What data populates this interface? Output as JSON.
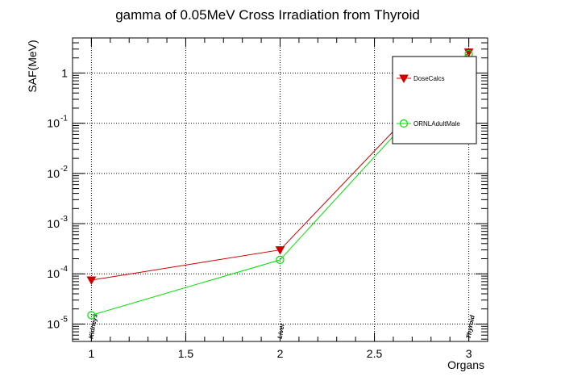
{
  "chart_data": {
    "type": "line",
    "title": "gamma of 0.05MeV Cross Irradiation from Thyroid",
    "xlabel": "Organs",
    "ylabel": "SAF(MeV)",
    "xlim": [
      0.9,
      3.1
    ],
    "ylim": [
      4.5e-06,
      5
    ],
    "yscale": "log",
    "grid": true,
    "legend_position": "top-right",
    "x_ticks": [
      "1",
      "1.5",
      "2",
      "2.5",
      "3"
    ],
    "y_ticks": [
      {
        "base": "10",
        "exp": "-5",
        "value": 1e-05
      },
      {
        "base": "10",
        "exp": "-4",
        "value": 0.0001
      },
      {
        "base": "10",
        "exp": "-3",
        "value": 0.001
      },
      {
        "base": "10",
        "exp": "-2",
        "value": 0.01
      },
      {
        "base": "10",
        "exp": "-1",
        "value": 0.1
      },
      {
        "base": "1",
        "exp": "",
        "value": 1
      }
    ],
    "category_labels": [
      {
        "x": 1,
        "label": "Kidneys"
      },
      {
        "x": 2,
        "label": "Liver"
      },
      {
        "x": 3,
        "label": "Thyroid"
      }
    ],
    "series": [
      {
        "name": "DoseCalcs",
        "color": "#cc0000",
        "marker": "triangle-down",
        "x": [
          1,
          2,
          3
        ],
        "y": [
          7.5e-05,
          0.0003,
          2.6
        ]
      },
      {
        "name": "ORNLAdultMale",
        "color": "#00e000",
        "marker": "open-circle",
        "x": [
          1,
          2,
          3
        ],
        "y": [
          1.5e-05,
          0.00019,
          2.4
        ]
      }
    ]
  }
}
